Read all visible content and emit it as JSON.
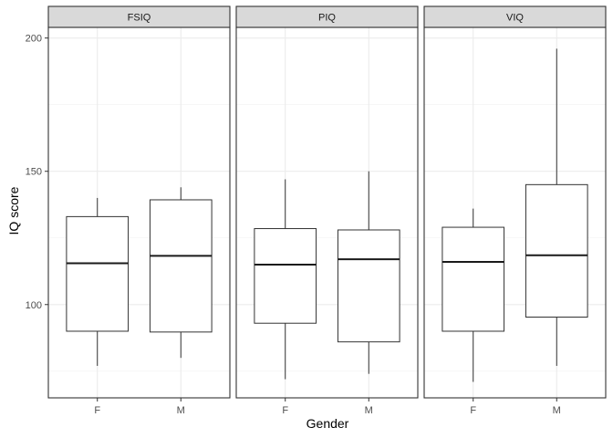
{
  "chart_data": {
    "type": "boxplot",
    "facets": [
      "FSIQ",
      "PIQ",
      "VIQ"
    ],
    "categories": [
      "F",
      "M"
    ],
    "xlabel": "Gender",
    "ylabel": "IQ score",
    "ylim": [
      65,
      204
    ],
    "yticks": [
      100,
      150,
      200
    ],
    "grid": true,
    "boxes": [
      {
        "facet": "FSIQ",
        "category": "F",
        "min": 77,
        "q1": 90,
        "median": 115.5,
        "q3": 133,
        "max": 140
      },
      {
        "facet": "FSIQ",
        "category": "M",
        "min": 80,
        "q1": 89.7,
        "median": 118.3,
        "q3": 139.3,
        "max": 144
      },
      {
        "facet": "PIQ",
        "category": "F",
        "min": 72,
        "q1": 93,
        "median": 115,
        "q3": 128.5,
        "max": 147
      },
      {
        "facet": "PIQ",
        "category": "M",
        "min": 74,
        "q1": 86,
        "median": 117,
        "q3": 128,
        "max": 150
      },
      {
        "facet": "VIQ",
        "category": "F",
        "min": 71,
        "q1": 90,
        "median": 116,
        "q3": 129,
        "max": 136
      },
      {
        "facet": "VIQ",
        "category": "M",
        "min": 77,
        "q1": 95.3,
        "median": 118.5,
        "q3": 145,
        "max": 196
      }
    ]
  }
}
